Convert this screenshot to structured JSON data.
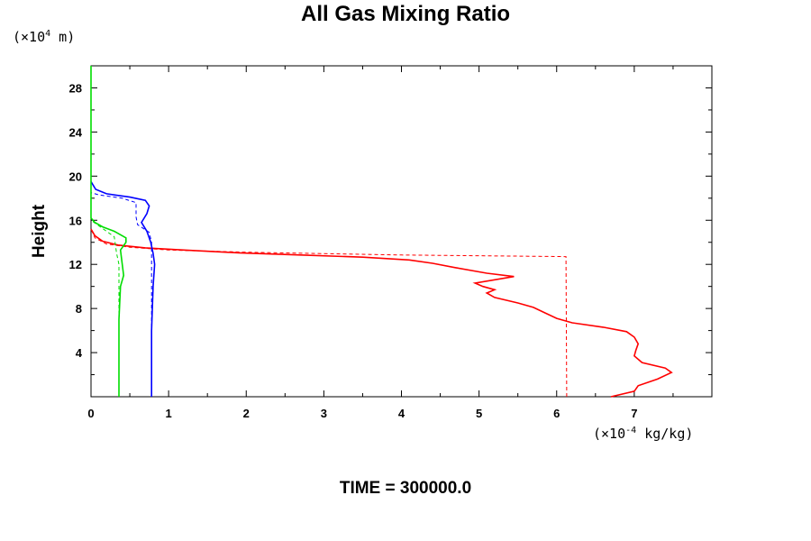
{
  "chart_data": {
    "type": "line",
    "title": "All Gas Mixing Ratio",
    "ylabel": "Height",
    "y_unit_prefix": "(×10",
    "y_unit_exp": "4",
    "y_unit_suffix": " m)",
    "x_unit_prefix": "(×10",
    "x_unit_exp": "-4",
    "x_unit_suffix": " kg/kg)",
    "footer_label": "TIME = ",
    "footer_value": "300000.0",
    "xlim": [
      0,
      8
    ],
    "ylim": [
      0,
      30
    ],
    "xticks": [
      "0",
      "1",
      "2",
      "3",
      "4",
      "5",
      "6",
      "7"
    ],
    "yticks": [
      "4",
      "8",
      "12",
      "16",
      "20",
      "24",
      "28"
    ],
    "series": [
      {
        "color": "#ff0000",
        "style": "solid",
        "points": [
          [
            6.7,
            0
          ],
          [
            7.0,
            0.5
          ],
          [
            7.05,
            1.0
          ],
          [
            7.3,
            1.6
          ],
          [
            7.48,
            2.2
          ],
          [
            7.4,
            2.6
          ],
          [
            7.1,
            3.1
          ],
          [
            7.0,
            3.7
          ],
          [
            7.02,
            4.2
          ],
          [
            7.05,
            4.8
          ],
          [
            7.0,
            5.4
          ],
          [
            6.9,
            5.9
          ],
          [
            6.6,
            6.3
          ],
          [
            6.2,
            6.7
          ],
          [
            6.0,
            7.1
          ],
          [
            5.85,
            7.6
          ],
          [
            5.7,
            8.1
          ],
          [
            5.5,
            8.5
          ],
          [
            5.2,
            9.0
          ],
          [
            5.1,
            9.4
          ],
          [
            5.2,
            9.7
          ],
          [
            5.05,
            10.0
          ],
          [
            4.95,
            10.3
          ],
          [
            5.45,
            10.9
          ],
          [
            5.1,
            11.2
          ],
          [
            4.7,
            11.7
          ],
          [
            4.4,
            12.1
          ],
          [
            4.1,
            12.4
          ],
          [
            3.5,
            12.65
          ],
          [
            2.7,
            12.85
          ],
          [
            1.9,
            13.05
          ],
          [
            1.2,
            13.3
          ],
          [
            0.7,
            13.5
          ],
          [
            0.35,
            13.75
          ],
          [
            0.15,
            14.1
          ],
          [
            0.05,
            14.6
          ],
          [
            0.0,
            15.2
          ]
        ]
      },
      {
        "color": "#ff0000",
        "style": "dashed",
        "points": [
          [
            6.13,
            0
          ],
          [
            6.12,
            12.7
          ],
          [
            4.0,
            12.85
          ],
          [
            2.0,
            13.1
          ],
          [
            1.0,
            13.3
          ],
          [
            0.5,
            13.55
          ],
          [
            0.2,
            13.85
          ],
          [
            0.05,
            14.4
          ],
          [
            0.0,
            15.2
          ]
        ]
      },
      {
        "color": "#0000ff",
        "style": "solid",
        "points": [
          [
            0.78,
            0
          ],
          [
            0.78,
            6.0
          ],
          [
            0.8,
            10.0
          ],
          [
            0.82,
            12.0
          ],
          [
            0.8,
            13.0
          ],
          [
            0.77,
            14.0
          ],
          [
            0.72,
            15.0
          ],
          [
            0.65,
            15.8
          ],
          [
            0.72,
            16.6
          ],
          [
            0.75,
            17.3
          ],
          [
            0.7,
            17.8
          ],
          [
            0.5,
            18.1
          ],
          [
            0.2,
            18.4
          ],
          [
            0.06,
            18.8
          ],
          [
            0.0,
            19.5
          ]
        ]
      },
      {
        "color": "#0000ff",
        "style": "dashed",
        "points": [
          [
            0.78,
            0
          ],
          [
            0.78,
            14.0
          ],
          [
            0.75,
            14.9
          ],
          [
            0.6,
            15.6
          ],
          [
            0.58,
            16.3
          ],
          [
            0.58,
            17.6
          ],
          [
            0.4,
            18.0
          ],
          [
            0.1,
            18.3
          ],
          [
            0.0,
            18.5
          ]
        ]
      },
      {
        "color": "#00dd00",
        "style": "solid",
        "points": [
          [
            0.0,
            30
          ],
          [
            0.0,
            16.2
          ],
          [
            0.05,
            15.8
          ],
          [
            0.15,
            15.4
          ],
          [
            0.3,
            15.0
          ],
          [
            0.45,
            14.4
          ],
          [
            0.45,
            14.0
          ],
          [
            0.38,
            13.3
          ],
          [
            0.42,
            11.0
          ],
          [
            0.38,
            10.0
          ],
          [
            0.36,
            7.0
          ],
          [
            0.36,
            0
          ]
        ]
      },
      {
        "color": "#00dd00",
        "style": "dashed",
        "points": [
          [
            0.36,
            0
          ],
          [
            0.36,
            12.0
          ],
          [
            0.33,
            13.0
          ],
          [
            0.3,
            14.5
          ],
          [
            0.1,
            15.5
          ],
          [
            0.0,
            16.0
          ]
        ]
      }
    ]
  }
}
